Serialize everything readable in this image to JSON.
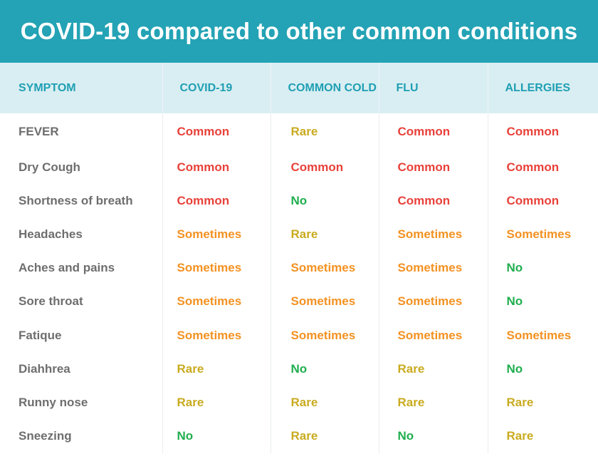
{
  "title": "COVID-19 compared to other common conditions",
  "colors": {
    "title_bg": "#23a3b5",
    "header_bg": "#d9eef2",
    "header_text": "#1f9fb3",
    "Common": "#e8413a",
    "Rare": "#c9ab1f",
    "Sometimes": "#f39222",
    "No": "#1fae4e"
  },
  "chart_data": {
    "type": "table",
    "title": "COVID-19 compared to other common conditions",
    "columns": [
      "SYMPTOM",
      "COVID-19",
      "COMMON COLD",
      "FLU",
      "ALLERGIES"
    ],
    "rows": [
      {
        "symptom": "FEVER",
        "values": [
          "Common",
          "Rare",
          "Common",
          "Common"
        ]
      },
      {
        "symptom": "Dry Cough",
        "values": [
          "Common",
          "Common",
          "Common",
          "Common"
        ]
      },
      {
        "symptom": "Shortness of breath",
        "values": [
          "Common",
          "No",
          "Common",
          "Common"
        ]
      },
      {
        "symptom": "Headaches",
        "values": [
          "Sometimes",
          "Rare",
          "Sometimes",
          "Sometimes"
        ]
      },
      {
        "symptom": "Aches and pains",
        "values": [
          "Sometimes",
          "Sometimes",
          "Sometimes",
          "No"
        ]
      },
      {
        "symptom": "Sore throat",
        "values": [
          "Sometimes",
          "Sometimes",
          "Sometimes",
          "No"
        ]
      },
      {
        "symptom": "Fatique",
        "values": [
          "Sometimes",
          "Sometimes",
          "Sometimes",
          "Sometimes"
        ]
      },
      {
        "symptom": "Diahhrea",
        "values": [
          "Rare",
          "No",
          "Rare",
          "No"
        ]
      },
      {
        "symptom": "Runny nose",
        "values": [
          "Rare",
          "Rare",
          "Rare",
          "Rare"
        ]
      },
      {
        "symptom": "Sneezing",
        "values": [
          "No",
          "Rare",
          "No",
          "Rare"
        ]
      }
    ]
  }
}
